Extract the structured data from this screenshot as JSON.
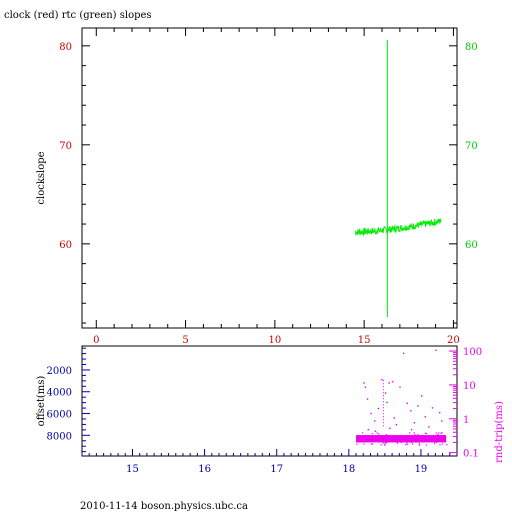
{
  "title": "clock (red) rtc (green) slopes",
  "footer": "2010-11-14 boson.physics.ubc.ca",
  "colors": {
    "clock": "#cc0000",
    "rtc": "#00ee00",
    "offset_axis": "#0000aa",
    "rndtrip": "#ee00ee",
    "frame": "#000000"
  },
  "chart_data": [
    {
      "type": "line",
      "title": "clock (red) rtc (green) slopes",
      "ylabel": "clockslope",
      "xlabel": "",
      "xlim": [
        -0.8,
        20.2
      ],
      "ylim": [
        51.5,
        81.8
      ],
      "x_ticks": [
        "0",
        "5",
        "10",
        "15",
        "20"
      ],
      "y_ticks_left": [
        "60",
        "70",
        "80"
      ],
      "y_ticks_right": [
        "60",
        "70",
        "80"
      ],
      "grid": false,
      "series": [
        {
          "name": "rtc",
          "color": "#00ee00",
          "x_range": [
            14.5,
            19.3
          ],
          "y_start": 61.2,
          "y_end": 62.3,
          "noise": 0.35
        }
      ],
      "spike": {
        "x": 16.3,
        "y_min": 52.6,
        "y_max": 80.6
      }
    },
    {
      "type": "scatter",
      "ylabel_left": "offset(ms)",
      "ylabel_right": "rnd-trip(ms)",
      "xlim": [
        14.3,
        19.5
      ],
      "offset_ticks": [
        "2000",
        "4000",
        "6000",
        "8000"
      ],
      "offset_lim": [
        -200,
        9900
      ],
      "rndtrip_ticks": [
        "100",
        "10",
        "1",
        "0.1"
      ],
      "rndtrip_log_lim": [
        -1.1,
        2.15
      ],
      "x_ticks": [
        "15",
        "16",
        "17",
        "18",
        "19"
      ],
      "rndtrip": {
        "color": "#ee00ee",
        "baseline_band": [
          0.2,
          0.33
        ],
        "x_range": [
          18.1,
          19.35
        ],
        "scatter_points": [
          [
            18.2,
            12
          ],
          [
            18.22,
            9
          ],
          [
            18.25,
            4
          ],
          [
            18.3,
            1.5
          ],
          [
            18.35,
            0.9
          ],
          [
            18.4,
            2.1
          ],
          [
            18.45,
            15
          ],
          [
            18.5,
            6
          ],
          [
            18.52,
            3.2
          ],
          [
            18.55,
            12
          ],
          [
            18.6,
            13
          ],
          [
            18.62,
            1.1
          ],
          [
            18.65,
            0.7
          ],
          [
            18.7,
            9
          ],
          [
            18.75,
            90
          ],
          [
            18.8,
            3
          ],
          [
            18.85,
            1.8
          ],
          [
            18.9,
            0.8
          ],
          [
            18.95,
            2.5
          ],
          [
            19.0,
            5
          ],
          [
            19.05,
            1.2
          ],
          [
            19.1,
            0.6
          ],
          [
            19.15,
            2.2
          ],
          [
            19.2,
            110
          ],
          [
            19.25,
            1.6
          ],
          [
            19.28,
            0.9
          ],
          [
            18.26,
            0.5
          ],
          [
            18.36,
            0.45
          ],
          [
            18.56,
            0.55
          ],
          [
            18.86,
            0.5
          ]
        ],
        "column_x": 18.48,
        "column_range": [
          0.6,
          14
        ]
      }
    }
  ]
}
